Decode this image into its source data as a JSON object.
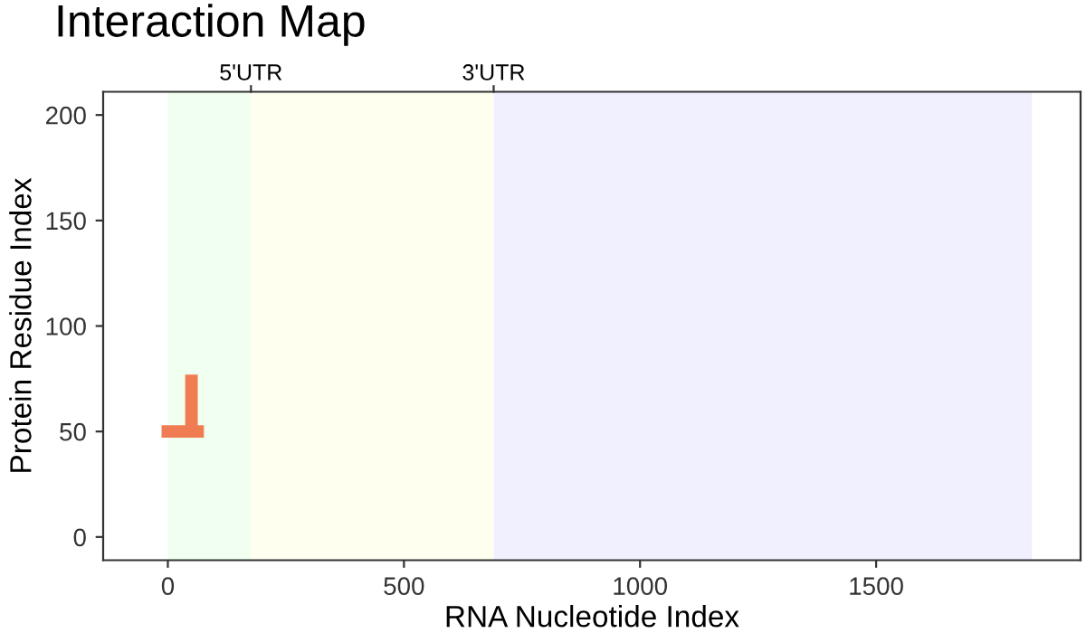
{
  "chart_data": {
    "type": "line",
    "title": "Interaction Map",
    "xlabel": "RNA Nucleotide Index",
    "ylabel": "Protein Residue Index",
    "xlim": [
      -137,
      1933
    ],
    "xticks": [
      0,
      500,
      1000,
      1500
    ],
    "ylim": [
      -11,
      211
    ],
    "yticks": [
      0,
      50,
      100,
      150,
      200
    ],
    "ref_lines": [
      {
        "axis": "x",
        "value": 176,
        "label": "5'UTR"
      },
      {
        "axis": "x",
        "value": 690,
        "label": "3'UTR"
      }
    ],
    "bands": [
      {
        "axis": "x",
        "from": 0,
        "to": 176,
        "color": "#f0fff0"
      },
      {
        "axis": "x",
        "from": 176,
        "to": 690,
        "color": "#fffff0"
      },
      {
        "axis": "x",
        "from": 690,
        "to": 1830,
        "color": "#f0f0ff"
      }
    ],
    "series": [
      {
        "color": "#f07c54",
        "x": [
          0,
          63
        ],
        "values": [
          50,
          50
        ]
      },
      {
        "color": "#f07c54",
        "x": [
          50,
          50
        ],
        "values": [
          50,
          74
        ]
      }
    ],
    "grid": false,
    "legend": false
  }
}
